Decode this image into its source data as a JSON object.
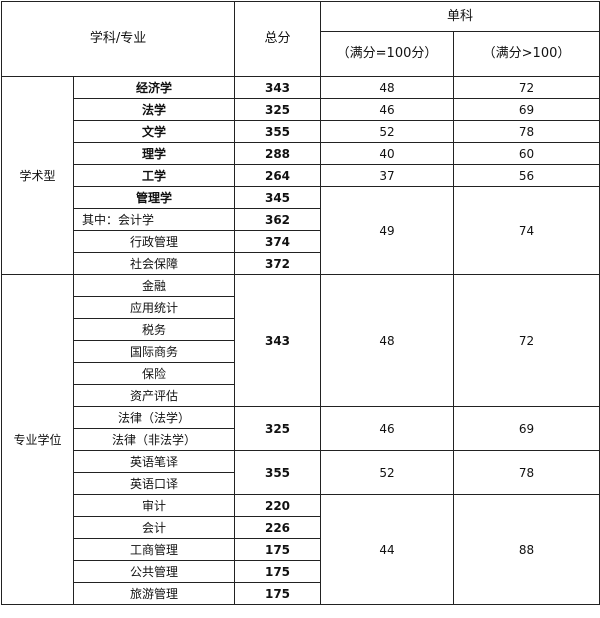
{
  "header": {
    "subject": "学科/专业",
    "total": "总分",
    "single": "单科",
    "single_100": "（满分=100分）",
    "single_gt100": "（满分>100）"
  },
  "groups": [
    {
      "category": "学术型",
      "blocks": [
        {
          "subjects": [
            {
              "name": "经济学",
              "bold": true
            }
          ],
          "totals": [
            "343"
          ],
          "s100": "48",
          "sgt100": "72"
        },
        {
          "subjects": [
            {
              "name": "法学",
              "bold": true
            }
          ],
          "totals": [
            "325"
          ],
          "s100": "46",
          "sgt100": "69"
        },
        {
          "subjects": [
            {
              "name": "文学",
              "bold": true
            }
          ],
          "totals": [
            "355"
          ],
          "s100": "52",
          "sgt100": "78"
        },
        {
          "subjects": [
            {
              "name": "理学",
              "bold": true
            }
          ],
          "totals": [
            "288"
          ],
          "s100": "40",
          "sgt100": "60"
        },
        {
          "subjects": [
            {
              "name": "工学",
              "bold": true
            }
          ],
          "totals": [
            "264"
          ],
          "s100": "37",
          "sgt100": "56"
        },
        {
          "subjects": [
            {
              "name": "管理学",
              "bold": true
            },
            {
              "name": "其中：会计学",
              "left": true
            },
            {
              "name": "行政管理"
            },
            {
              "name": "社会保障"
            }
          ],
          "totals": [
            "345",
            "362",
            "374",
            "372"
          ],
          "s100": "49",
          "sgt100": "74"
        }
      ]
    },
    {
      "category": "专业学位",
      "blocks": [
        {
          "subjects": [
            {
              "name": "金融"
            },
            {
              "name": "应用统计"
            },
            {
              "name": "税务"
            },
            {
              "name": "国际商务"
            },
            {
              "name": "保险"
            },
            {
              "name": "资产评估"
            }
          ],
          "totals": [
            "343"
          ],
          "s100": "48",
          "sgt100": "72"
        },
        {
          "subjects": [
            {
              "name": "法律（法学）"
            },
            {
              "name": "法律（非法学）"
            }
          ],
          "totals": [
            "325"
          ],
          "s100": "46",
          "sgt100": "69"
        },
        {
          "subjects": [
            {
              "name": "英语笔译"
            },
            {
              "name": "英语口译"
            }
          ],
          "totals": [
            "355"
          ],
          "s100": "52",
          "sgt100": "78"
        },
        {
          "subjects": [
            {
              "name": "审计"
            },
            {
              "name": "会计"
            },
            {
              "name": "工商管理"
            },
            {
              "name": "公共管理"
            },
            {
              "name": "旅游管理"
            }
          ],
          "totals": [
            "220",
            "226",
            "175",
            "175",
            "175"
          ],
          "s100": "44",
          "sgt100": "88"
        }
      ]
    }
  ]
}
